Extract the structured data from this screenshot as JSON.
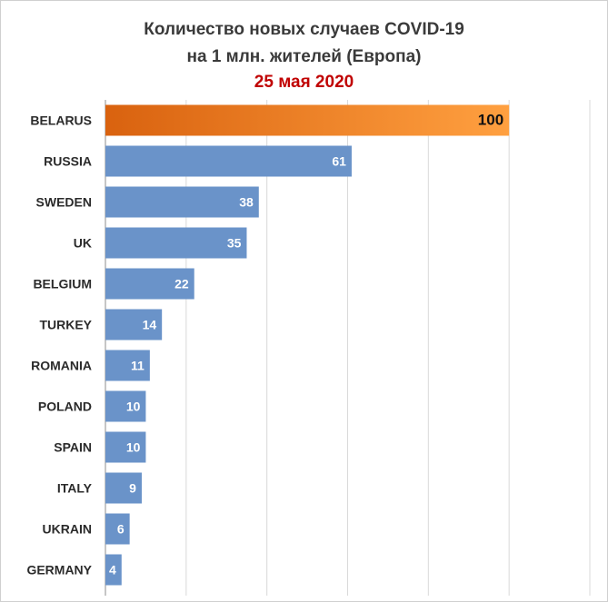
{
  "chart_data": {
    "type": "bar",
    "orientation": "horizontal",
    "title_line1": "Количество новых случаев COVID-19",
    "title_line2": "на 1 млн. жителей (Европа)",
    "subtitle": "25 мая 2020",
    "categories": [
      "BELARUS",
      "RUSSIA",
      "SWEDEN",
      "UK",
      "BELGIUM",
      "TURKEY",
      "ROMANIA",
      "POLAND",
      "SPAIN",
      "ITALY",
      "UKRAIN",
      "GERMANY"
    ],
    "values": [
      100,
      61,
      38,
      35,
      22,
      14,
      11,
      10,
      10,
      9,
      6,
      4
    ],
    "highlight_category": "BELARUS",
    "xlim": [
      0,
      120
    ],
    "grid": true,
    "colors": {
      "bar": "#6a93c9",
      "bar_highlight_start": "#d9620f",
      "bar_highlight_end": "#ffa040",
      "title": "#3a3a3a",
      "subtitle": "#c00000",
      "grid": "#d9d9d9"
    }
  }
}
